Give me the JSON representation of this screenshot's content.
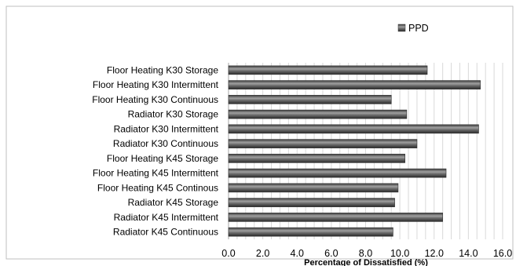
{
  "chart_data": {
    "type": "bar",
    "orientation": "horizontal",
    "categories": [
      "Floor Heating K30 Storage",
      "Floor Heating K30 Intermittent",
      "Floor Heating K30 Continuous",
      "Radiator K30 Storage",
      "Radiator K30 Intermittent",
      "Radiator K30 Continuous",
      "Floor Heating K45 Storage",
      "Floor Heating K45 Intermittent",
      "Floor Heating K45 Continous",
      "Radiator K45 Storage",
      "Radiator K45 Intermittent",
      "Radiator K45 Continuous"
    ],
    "series": [
      {
        "name": "PPD",
        "values": [
          11.6,
          14.7,
          9.5,
          10.4,
          14.6,
          11.0,
          10.3,
          12.7,
          9.9,
          9.7,
          12.5,
          9.6
        ]
      }
    ],
    "xlabel": "Percentage of Dissatisfied (%)",
    "xlim": [
      0,
      16
    ],
    "xticks": [
      "0.0",
      "2.0",
      "4.0",
      "6.0",
      "8.0",
      "10.0",
      "12.0",
      "14.0",
      "16.0"
    ],
    "grid": "vertical",
    "legend_position": "top-right",
    "colors": {
      "bar": "#595959",
      "bar_highlight": "#9a9a9a",
      "bar_shadow": "#2e2e2e",
      "grid": "#d9d9d9",
      "frame": "#bfbfbf"
    }
  }
}
